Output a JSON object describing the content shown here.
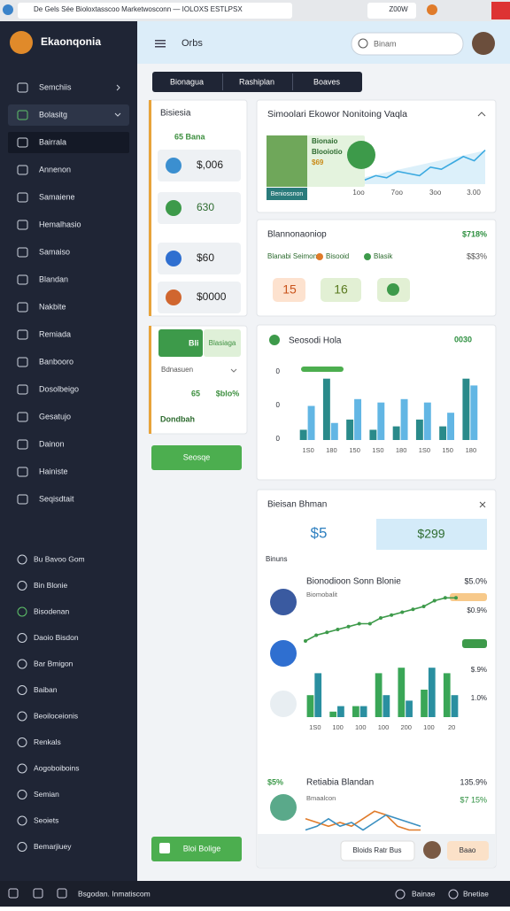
{
  "browser": {
    "tab": "De Gels Sée Bioloxtasscoo Marketwosconn — IOLOXS ESTLPSX",
    "zoom": "Z00W"
  },
  "sidebar": {
    "brand": "Ekaonqonia",
    "items": [
      "Semchiis",
      "Bolasitg",
      "Bairrala",
      "Annenon",
      "Samaiene",
      "Hemalhasio",
      "Samaiso",
      "Blandan",
      "Nakbite",
      "Remiada",
      "Banbooro",
      "Dosolbeigo",
      "Gesatujo",
      "Dainon",
      "Hainiste",
      "Seqisdtait"
    ],
    "items2": [
      "Bu Bavoo Gom",
      "Bin Blonie",
      "Bisodenan",
      "Daoio Bisdon",
      "Bar Bmigon",
      "Baiban",
      "Beoiloceionis",
      "Renkals",
      "Aogoboiboins",
      "Semian",
      "Seoiets",
      "Bemarjiuey"
    ],
    "button": "Bloi Bolige"
  },
  "header": {
    "title": "Orbs",
    "search": "Binam"
  },
  "tabs": [
    "Bionagua",
    "Rashiplan",
    "Boaves"
  ],
  "summary": {
    "title": "Bisiesia",
    "subtitle": "65 Bana",
    "items": [
      "$,006",
      "630",
      "$60",
      "$0000"
    ]
  },
  "filter": {
    "chip": "Bli",
    "chip2": "Blasiaga",
    "select": "Bdnasuen",
    "stat1": "65",
    "stat2": "$blo%",
    "footer": "Dondbah"
  },
  "action_button": "Seosqe",
  "cards": [
    {
      "title": "Simoolari Ekowor Nonitoing Vaqla",
      "banner_lines": [
        "Bionaio",
        "Blooiotio",
        "$69"
      ],
      "button": "Beniossnon",
      "x_labels": [
        "1oo",
        "7oo",
        "3oo",
        "3.00"
      ],
      "values": [
        1,
        2,
        1.5,
        3,
        2.5,
        2,
        4,
        3.5,
        5,
        6.5,
        5.5,
        8
      ],
      "ylim": [
        0,
        10
      ],
      "color": "#3aa9e0"
    },
    {
      "title": "Blannonaoniop",
      "value": "$718%",
      "legend": [
        "Blanabi Seimon",
        "Bisooid",
        "Blasik"
      ],
      "value2": "$$3%",
      "badges": [
        "15",
        "16"
      ]
    },
    {
      "title": "Seosodi Hola",
      "value": "0030",
      "y_labels": [
        "0",
        "0",
        "0"
      ],
      "categories": [
        "1S0",
        "180",
        "150",
        "1S0",
        "180",
        "1S0",
        "150",
        "180"
      ],
      "ylim": [
        0,
        10
      ],
      "series": [
        {
          "color": "#2a8a8a",
          "values": [
            1.5,
            9,
            3,
            1.5,
            2,
            3,
            2,
            9
          ]
        },
        {
          "color": "#62b6e4",
          "values": [
            5,
            2.5,
            6,
            5.5,
            6,
            5.5,
            4,
            8
          ]
        }
      ]
    },
    {
      "title": "Bieisan Bhman",
      "stat_left": "$5",
      "stat_right": "$299",
      "label": "Binuns",
      "row1": {
        "title": "Bionodioon Sonn Blonie",
        "value": "$5.0%",
        "sub": "Biomobalit",
        "value2": "$0.9%"
      },
      "line": {
        "values": [
          2,
          3,
          3.5,
          4,
          4.5,
          5,
          5,
          6,
          6.5,
          7,
          7.5,
          8,
          9,
          9.5,
          9.5
        ],
        "ylim": [
          0,
          10
        ],
        "color": "#3d9a4a"
      },
      "bars": {
        "categories": [
          "1S0",
          "100",
          "100",
          "100",
          "200",
          "100",
          "20"
        ],
        "y_labels": [
          "$.9%",
          "1.0%"
        ],
        "ylim": [
          0,
          10
        ],
        "series": [
          {
            "color": "#3aa657",
            "values": [
              4,
              1,
              2,
              8,
              9,
              5,
              8
            ]
          },
          {
            "color": "#2a8fa0",
            "values": [
              8,
              2,
              2,
              4,
              3,
              9,
              4
            ]
          }
        ]
      },
      "row2": {
        "lead": "$5%",
        "title": "Retiabia Blandan",
        "value": "135.9%",
        "sub": "Bmaalcon",
        "value2": "$7 15%"
      },
      "mini": {
        "ylim": [
          0,
          8
        ],
        "series": [
          {
            "color": "#e07b2a",
            "values": [
              5,
              4,
              3,
              4,
              3,
              5,
              7,
              6,
              3,
              2,
              2
            ]
          },
          {
            "color": "#3a8fc0",
            "values": [
              2,
              3,
              5,
              3,
              4,
              2,
              4,
              6,
              5,
              4,
              3
            ]
          }
        ]
      },
      "chip": "Bloids Ratr Bus",
      "chip2": "Baao"
    }
  ],
  "footer": {
    "left": "Bsgodan. Inmatiscom",
    "right1": "Bainae",
    "right2": "Bnetiae"
  }
}
